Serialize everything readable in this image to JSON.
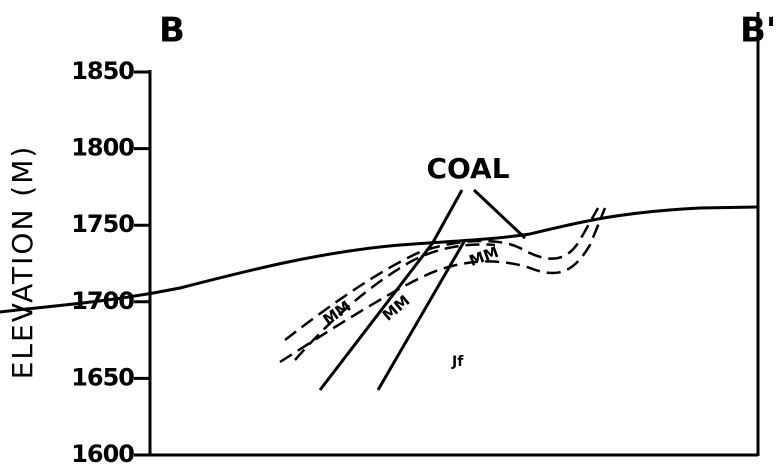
{
  "section": {
    "left_label": "B",
    "right_label": "B'"
  },
  "axis": {
    "label": "ELEVATION (M)",
    "ylim": [
      1600,
      1850
    ],
    "yticks": [
      1600,
      1650,
      1700,
      1750,
      1800,
      1850
    ]
  },
  "annotations": {
    "coal": "COAL",
    "mm": [
      "MM",
      "MM",
      "MM"
    ],
    "formation": "Jf"
  }
}
